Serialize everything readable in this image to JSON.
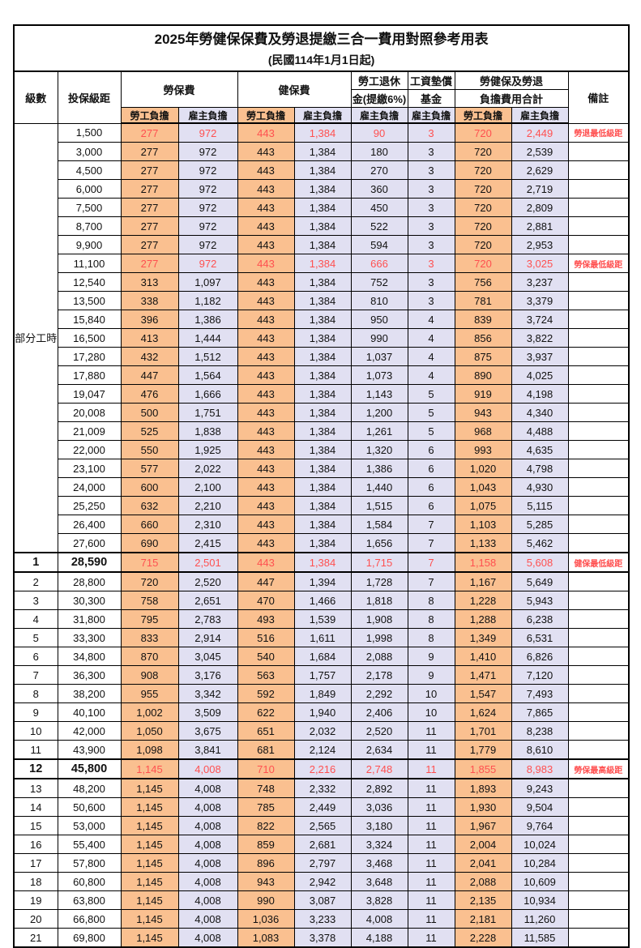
{
  "title": "2025年勞健保保費及勞退提繳三合一費用對照參考用表",
  "subtitle": "(民國114年1月1日起)",
  "colors": {
    "employee_col_bg": "#FAC090",
    "employer_col_bg": "#E1E0F2",
    "highlight_text": "#FF5050",
    "border": "#000000"
  },
  "header": {
    "level": "級數",
    "bracket": "投保級距",
    "labor_fee": "勞保費",
    "health_fee": "健保費",
    "pension_line1": "勞工退休",
    "pension_line2": "金(提繳6%)",
    "wage_fund_line1": "工資墊償",
    "wage_fund_line2": "基金",
    "total_line1": "勞健保及勞退",
    "total_line2": "負擔費用合計",
    "remark": "備註",
    "employee": "勞工負擔",
    "employer": "雇主負擔"
  },
  "part_time_label": "部分工時",
  "value_columns": [
    "labor-fee-employee",
    "labor-fee-employer",
    "health-fee-employee",
    "health-fee-employer",
    "pension-employer",
    "wage-fund-employer",
    "total-employee",
    "total-employer"
  ],
  "rows": [
    {
      "level": "",
      "bracket": "1,500",
      "values": [
        "277",
        "972",
        "443",
        "1,384",
        "90",
        "3",
        "720",
        "2,449"
      ],
      "remark": "勞退最低級距",
      "red": true,
      "strong": false,
      "thick": false
    },
    {
      "level": "",
      "bracket": "3,000",
      "values": [
        "277",
        "972",
        "443",
        "1,384",
        "180",
        "3",
        "720",
        "2,539"
      ],
      "remark": "",
      "red": false,
      "strong": false,
      "thick": false
    },
    {
      "level": "",
      "bracket": "4,500",
      "values": [
        "277",
        "972",
        "443",
        "1,384",
        "270",
        "3",
        "720",
        "2,629"
      ],
      "remark": "",
      "red": false,
      "strong": false,
      "thick": false
    },
    {
      "level": "",
      "bracket": "6,000",
      "values": [
        "277",
        "972",
        "443",
        "1,384",
        "360",
        "3",
        "720",
        "2,719"
      ],
      "remark": "",
      "red": false,
      "strong": false,
      "thick": false
    },
    {
      "level": "",
      "bracket": "7,500",
      "values": [
        "277",
        "972",
        "443",
        "1,384",
        "450",
        "3",
        "720",
        "2,809"
      ],
      "remark": "",
      "red": false,
      "strong": false,
      "thick": false
    },
    {
      "level": "",
      "bracket": "8,700",
      "values": [
        "277",
        "972",
        "443",
        "1,384",
        "522",
        "3",
        "720",
        "2,881"
      ],
      "remark": "",
      "red": false,
      "strong": false,
      "thick": false
    },
    {
      "level": "",
      "bracket": "9,900",
      "values": [
        "277",
        "972",
        "443",
        "1,384",
        "594",
        "3",
        "720",
        "2,953"
      ],
      "remark": "",
      "red": false,
      "strong": false,
      "thick": false
    },
    {
      "level": "",
      "bracket": "11,100",
      "values": [
        "277",
        "972",
        "443",
        "1,384",
        "666",
        "3",
        "720",
        "3,025"
      ],
      "remark": "勞保最低級距",
      "red": true,
      "strong": false,
      "thick": false
    },
    {
      "level": "",
      "bracket": "12,540",
      "values": [
        "313",
        "1,097",
        "443",
        "1,384",
        "752",
        "3",
        "756",
        "3,237"
      ],
      "remark": "",
      "red": false,
      "strong": false,
      "thick": false
    },
    {
      "level": "",
      "bracket": "13,500",
      "values": [
        "338",
        "1,182",
        "443",
        "1,384",
        "810",
        "3",
        "781",
        "3,379"
      ],
      "remark": "",
      "red": false,
      "strong": false,
      "thick": false
    },
    {
      "level": "",
      "bracket": "15,840",
      "values": [
        "396",
        "1,386",
        "443",
        "1,384",
        "950",
        "4",
        "839",
        "3,724"
      ],
      "remark": "",
      "red": false,
      "strong": false,
      "thick": false
    },
    {
      "level": "",
      "bracket": "16,500",
      "values": [
        "413",
        "1,444",
        "443",
        "1,384",
        "990",
        "4",
        "856",
        "3,822"
      ],
      "remark": "",
      "red": false,
      "strong": false,
      "thick": false
    },
    {
      "level": "",
      "bracket": "17,280",
      "values": [
        "432",
        "1,512",
        "443",
        "1,384",
        "1,037",
        "4",
        "875",
        "3,937"
      ],
      "remark": "",
      "red": false,
      "strong": false,
      "thick": false
    },
    {
      "level": "",
      "bracket": "17,880",
      "values": [
        "447",
        "1,564",
        "443",
        "1,384",
        "1,073",
        "4",
        "890",
        "4,025"
      ],
      "remark": "",
      "red": false,
      "strong": false,
      "thick": false
    },
    {
      "level": "",
      "bracket": "19,047",
      "values": [
        "476",
        "1,666",
        "443",
        "1,384",
        "1,143",
        "5",
        "919",
        "4,198"
      ],
      "remark": "",
      "red": false,
      "strong": false,
      "thick": false
    },
    {
      "level": "",
      "bracket": "20,008",
      "values": [
        "500",
        "1,751",
        "443",
        "1,384",
        "1,200",
        "5",
        "943",
        "4,340"
      ],
      "remark": "",
      "red": false,
      "strong": false,
      "thick": false
    },
    {
      "level": "",
      "bracket": "21,009",
      "values": [
        "525",
        "1,838",
        "443",
        "1,384",
        "1,261",
        "5",
        "968",
        "4,488"
      ],
      "remark": "",
      "red": false,
      "strong": false,
      "thick": false
    },
    {
      "level": "",
      "bracket": "22,000",
      "values": [
        "550",
        "1,925",
        "443",
        "1,384",
        "1,320",
        "6",
        "993",
        "4,635"
      ],
      "remark": "",
      "red": false,
      "strong": false,
      "thick": false
    },
    {
      "level": "",
      "bracket": "23,100",
      "values": [
        "577",
        "2,022",
        "443",
        "1,384",
        "1,386",
        "6",
        "1,020",
        "4,798"
      ],
      "remark": "",
      "red": false,
      "strong": false,
      "thick": false
    },
    {
      "level": "",
      "bracket": "24,000",
      "values": [
        "600",
        "2,100",
        "443",
        "1,384",
        "1,440",
        "6",
        "1,043",
        "4,930"
      ],
      "remark": "",
      "red": false,
      "strong": false,
      "thick": false
    },
    {
      "level": "",
      "bracket": "25,250",
      "values": [
        "632",
        "2,210",
        "443",
        "1,384",
        "1,515",
        "6",
        "1,075",
        "5,115"
      ],
      "remark": "",
      "red": false,
      "strong": false,
      "thick": false
    },
    {
      "level": "",
      "bracket": "26,400",
      "values": [
        "660",
        "2,310",
        "443",
        "1,384",
        "1,584",
        "7",
        "1,103",
        "5,285"
      ],
      "remark": "",
      "red": false,
      "strong": false,
      "thick": false
    },
    {
      "level": "",
      "bracket": "27,600",
      "values": [
        "690",
        "2,415",
        "443",
        "1,384",
        "1,656",
        "7",
        "1,133",
        "5,462"
      ],
      "remark": "",
      "red": false,
      "strong": false,
      "thick": false
    },
    {
      "level": "1",
      "bracket": "28,590",
      "values": [
        "715",
        "2,501",
        "443",
        "1,384",
        "1,715",
        "7",
        "1,158",
        "5,608"
      ],
      "remark": "健保最低級距",
      "red": true,
      "strong": true,
      "thick": true
    },
    {
      "level": "2",
      "bracket": "28,800",
      "values": [
        "720",
        "2,520",
        "447",
        "1,394",
        "1,728",
        "7",
        "1,167",
        "5,649"
      ],
      "remark": "",
      "red": false,
      "strong": false,
      "thick": false
    },
    {
      "level": "3",
      "bracket": "30,300",
      "values": [
        "758",
        "2,651",
        "470",
        "1,466",
        "1,818",
        "8",
        "1,228",
        "5,943"
      ],
      "remark": "",
      "red": false,
      "strong": false,
      "thick": false
    },
    {
      "level": "4",
      "bracket": "31,800",
      "values": [
        "795",
        "2,783",
        "493",
        "1,539",
        "1,908",
        "8",
        "1,288",
        "6,238"
      ],
      "remark": "",
      "red": false,
      "strong": false,
      "thick": false
    },
    {
      "level": "5",
      "bracket": "33,300",
      "values": [
        "833",
        "2,914",
        "516",
        "1,611",
        "1,998",
        "8",
        "1,349",
        "6,531"
      ],
      "remark": "",
      "red": false,
      "strong": false,
      "thick": false
    },
    {
      "level": "6",
      "bracket": "34,800",
      "values": [
        "870",
        "3,045",
        "540",
        "1,684",
        "2,088",
        "9",
        "1,410",
        "6,826"
      ],
      "remark": "",
      "red": false,
      "strong": false,
      "thick": false
    },
    {
      "level": "7",
      "bracket": "36,300",
      "values": [
        "908",
        "3,176",
        "563",
        "1,757",
        "2,178",
        "9",
        "1,471",
        "7,120"
      ],
      "remark": "",
      "red": false,
      "strong": false,
      "thick": false
    },
    {
      "level": "8",
      "bracket": "38,200",
      "values": [
        "955",
        "3,342",
        "592",
        "1,849",
        "2,292",
        "10",
        "1,547",
        "7,493"
      ],
      "remark": "",
      "red": false,
      "strong": false,
      "thick": false
    },
    {
      "level": "9",
      "bracket": "40,100",
      "values": [
        "1,002",
        "3,509",
        "622",
        "1,940",
        "2,406",
        "10",
        "1,624",
        "7,865"
      ],
      "remark": "",
      "red": false,
      "strong": false,
      "thick": false
    },
    {
      "level": "10",
      "bracket": "42,000",
      "values": [
        "1,050",
        "3,675",
        "651",
        "2,032",
        "2,520",
        "11",
        "1,701",
        "8,238"
      ],
      "remark": "",
      "red": false,
      "strong": false,
      "thick": false
    },
    {
      "level": "11",
      "bracket": "43,900",
      "values": [
        "1,098",
        "3,841",
        "681",
        "2,124",
        "2,634",
        "11",
        "1,779",
        "8,610"
      ],
      "remark": "",
      "red": false,
      "strong": false,
      "thick": false
    },
    {
      "level": "12",
      "bracket": "45,800",
      "values": [
        "1,145",
        "4,008",
        "710",
        "2,216",
        "2,748",
        "11",
        "1,855",
        "8,983"
      ],
      "remark": "勞保最高級距",
      "red": true,
      "strong": true,
      "thick": true
    },
    {
      "level": "13",
      "bracket": "48,200",
      "values": [
        "1,145",
        "4,008",
        "748",
        "2,332",
        "2,892",
        "11",
        "1,893",
        "9,243"
      ],
      "remark": "",
      "red": false,
      "strong": false,
      "thick": false
    },
    {
      "level": "14",
      "bracket": "50,600",
      "values": [
        "1,145",
        "4,008",
        "785",
        "2,449",
        "3,036",
        "11",
        "1,930",
        "9,504"
      ],
      "remark": "",
      "red": false,
      "strong": false,
      "thick": false
    },
    {
      "level": "15",
      "bracket": "53,000",
      "values": [
        "1,145",
        "4,008",
        "822",
        "2,565",
        "3,180",
        "11",
        "1,967",
        "9,764"
      ],
      "remark": "",
      "red": false,
      "strong": false,
      "thick": false
    },
    {
      "level": "16",
      "bracket": "55,400",
      "values": [
        "1,145",
        "4,008",
        "859",
        "2,681",
        "3,324",
        "11",
        "2,004",
        "10,024"
      ],
      "remark": "",
      "red": false,
      "strong": false,
      "thick": false
    },
    {
      "level": "17",
      "bracket": "57,800",
      "values": [
        "1,145",
        "4,008",
        "896",
        "2,797",
        "3,468",
        "11",
        "2,041",
        "10,284"
      ],
      "remark": "",
      "red": false,
      "strong": false,
      "thick": false
    },
    {
      "level": "18",
      "bracket": "60,800",
      "values": [
        "1,145",
        "4,008",
        "943",
        "2,942",
        "3,648",
        "11",
        "2,088",
        "10,609"
      ],
      "remark": "",
      "red": false,
      "strong": false,
      "thick": false
    },
    {
      "level": "19",
      "bracket": "63,800",
      "values": [
        "1,145",
        "4,008",
        "990",
        "3,087",
        "3,828",
        "11",
        "2,135",
        "10,934"
      ],
      "remark": "",
      "red": false,
      "strong": false,
      "thick": false
    },
    {
      "level": "20",
      "bracket": "66,800",
      "values": [
        "1,145",
        "4,008",
        "1,036",
        "3,233",
        "4,008",
        "11",
        "2,181",
        "11,260"
      ],
      "remark": "",
      "red": false,
      "strong": false,
      "thick": false
    },
    {
      "level": "21",
      "bracket": "69,800",
      "values": [
        "1,145",
        "4,008",
        "1,083",
        "3,378",
        "4,188",
        "11",
        "2,228",
        "11,585"
      ],
      "remark": "",
      "red": false,
      "strong": false,
      "thick": false
    }
  ]
}
